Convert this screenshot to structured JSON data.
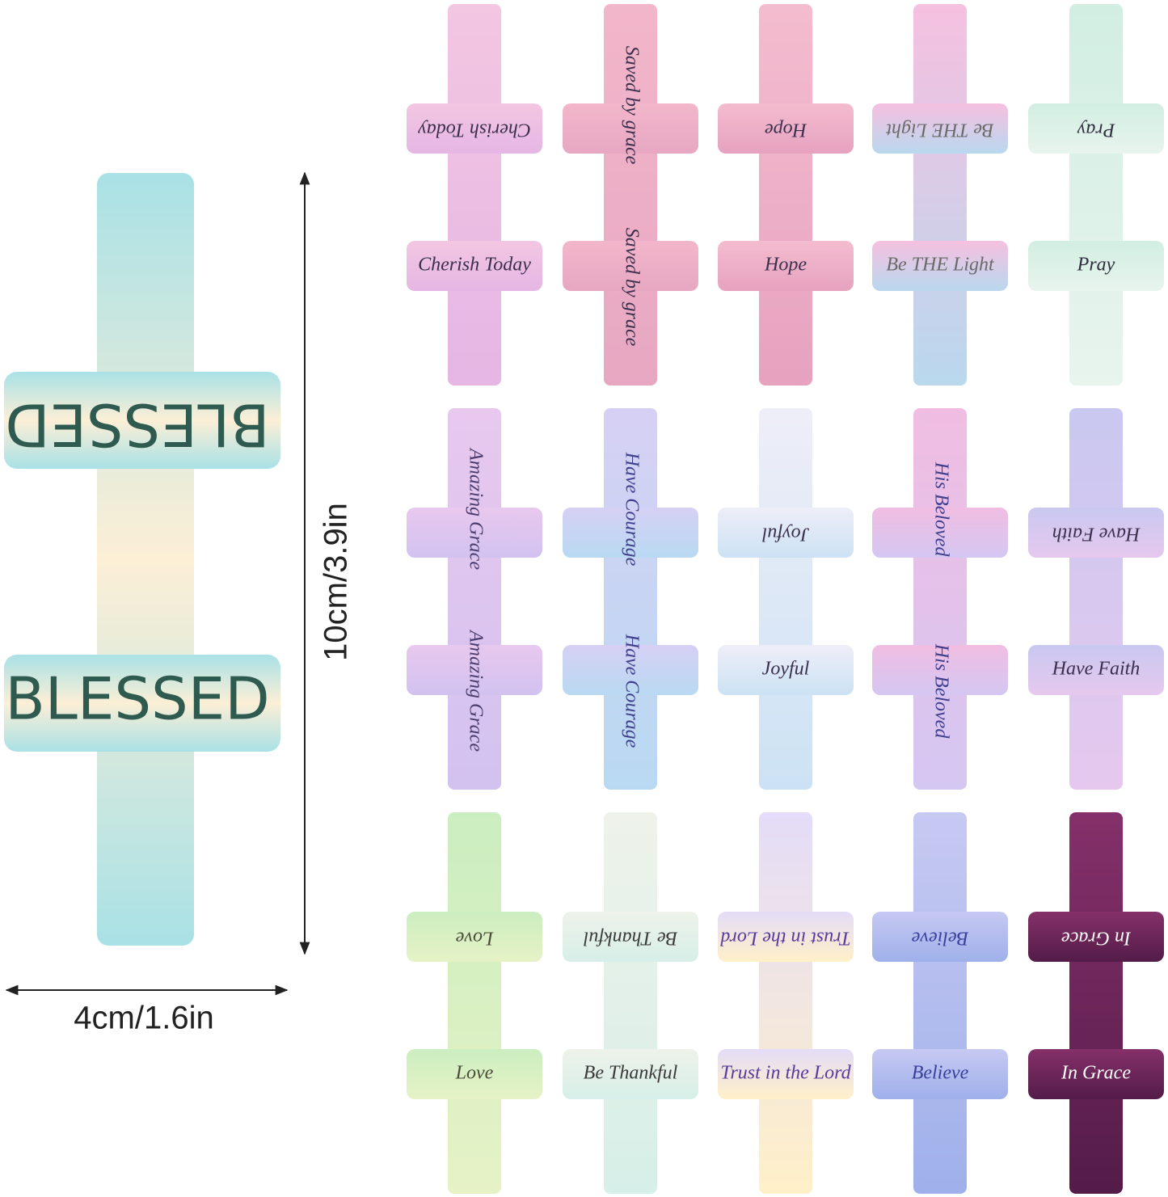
{
  "dimensions": {
    "height": "10cm/3.9in",
    "width": "4cm/1.6in"
  },
  "main": {
    "text": "BLESSED"
  },
  "crosses": [
    {
      "text": "Cherish Today"
    },
    {
      "text": "Saved by grace"
    },
    {
      "text": "Hope"
    },
    {
      "text": "Be THE Light"
    },
    {
      "text": "Pray"
    },
    {
      "text": "Amazing Grace"
    },
    {
      "text": "Have Courage"
    },
    {
      "text": "Joyful"
    },
    {
      "text": "His Beloved"
    },
    {
      "text": "Have Faith"
    },
    {
      "text": "Love"
    },
    {
      "text": "Be Thankful"
    },
    {
      "text": "Trust in the Lord"
    },
    {
      "text": "Believe"
    },
    {
      "text": "In Grace"
    }
  ]
}
